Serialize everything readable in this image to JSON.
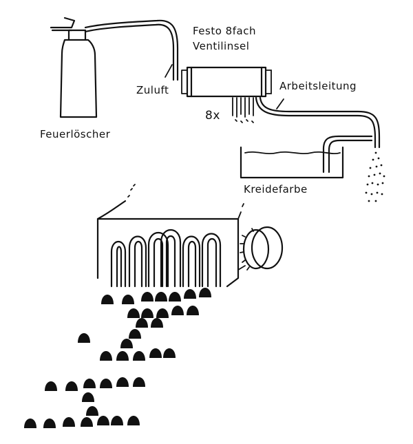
{
  "labels": {
    "valve_island_line1": "Festo 8fach",
    "valve_island_line2": "Ventilinsel",
    "supply": "Zuluft",
    "work_line": "Arbeitsleitung",
    "count": "8x",
    "extinguisher": "Feuerlöscher",
    "chalk_paint": "Kreidefarbe"
  },
  "colors": {
    "ink": "#111111",
    "paper": "#ffffff"
  }
}
